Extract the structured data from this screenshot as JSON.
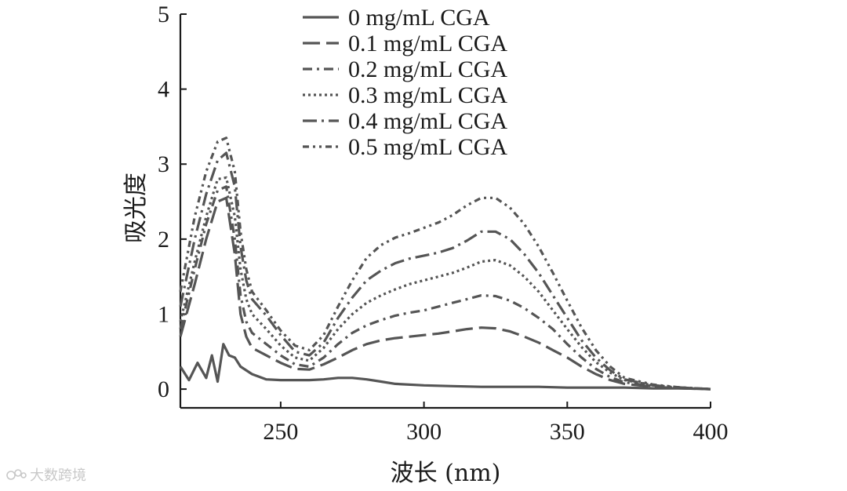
{
  "chart_data": {
    "type": "line",
    "title": "",
    "xlabel": "波长 (nm)",
    "ylabel": "吸光度",
    "xlim": [
      215,
      400
    ],
    "ylim": [
      -0.25,
      5
    ],
    "xticks": [
      250,
      300,
      350,
      400
    ],
    "yticks": [
      0,
      1,
      2,
      3,
      4,
      5
    ],
    "grid": false,
    "legend_position": "top-center",
    "series": [
      {
        "name": "0 mg/mL CGA",
        "color": "#555555",
        "dash": "solid",
        "x": [
          215,
          218,
          221,
          224,
          226,
          228,
          230,
          232,
          234,
          236,
          240,
          245,
          250,
          255,
          260,
          265,
          270,
          275,
          280,
          285,
          290,
          300,
          310,
          320,
          330,
          340,
          350,
          360,
          370,
          380,
          390,
          400
        ],
        "y": [
          0.3,
          0.12,
          0.35,
          0.15,
          0.45,
          0.1,
          0.6,
          0.45,
          0.42,
          0.3,
          0.2,
          0.13,
          0.12,
          0.12,
          0.12,
          0.13,
          0.15,
          0.15,
          0.13,
          0.1,
          0.07,
          0.05,
          0.04,
          0.03,
          0.03,
          0.03,
          0.02,
          0.02,
          0.02,
          0.01,
          0.01,
          0.0
        ]
      },
      {
        "name": "0.1 mg/mL CGA",
        "color": "#555555",
        "dash": "long-dash",
        "x": [
          215,
          220,
          224,
          228,
          231,
          234,
          236,
          238,
          240,
          245,
          250,
          255,
          260,
          265,
          270,
          275,
          280,
          285,
          290,
          295,
          300,
          305,
          310,
          315,
          320,
          325,
          330,
          335,
          340,
          345,
          350,
          355,
          360,
          365,
          370,
          380,
          390,
          400
        ],
        "y": [
          0.7,
          1.4,
          2.0,
          2.5,
          2.55,
          1.8,
          1.0,
          0.7,
          0.55,
          0.45,
          0.35,
          0.27,
          0.26,
          0.33,
          0.42,
          0.52,
          0.6,
          0.65,
          0.68,
          0.7,
          0.72,
          0.74,
          0.77,
          0.8,
          0.82,
          0.81,
          0.77,
          0.7,
          0.62,
          0.52,
          0.42,
          0.3,
          0.2,
          0.12,
          0.07,
          0.03,
          0.01,
          0.0
        ]
      },
      {
        "name": "0.2 mg/mL CGA",
        "color": "#555555",
        "dash": "dash-dot",
        "x": [
          215,
          220,
          224,
          228,
          231,
          234,
          236,
          238,
          240,
          245,
          250,
          255,
          260,
          265,
          270,
          275,
          280,
          285,
          290,
          295,
          300,
          305,
          310,
          315,
          320,
          325,
          330,
          335,
          340,
          345,
          350,
          355,
          360,
          365,
          370,
          380,
          390,
          400
        ],
        "y": [
          0.8,
          1.6,
          2.2,
          2.65,
          2.7,
          2.0,
          1.25,
          0.9,
          0.75,
          0.6,
          0.45,
          0.33,
          0.3,
          0.42,
          0.6,
          0.75,
          0.85,
          0.92,
          0.98,
          1.02,
          1.05,
          1.1,
          1.15,
          1.2,
          1.25,
          1.24,
          1.18,
          1.08,
          0.95,
          0.8,
          0.6,
          0.42,
          0.27,
          0.16,
          0.09,
          0.04,
          0.02,
          0.0
        ]
      },
      {
        "name": "0.3 mg/mL CGA",
        "color": "#555555",
        "dash": "dotted",
        "x": [
          215,
          220,
          224,
          228,
          231,
          234,
          236,
          238,
          240,
          245,
          250,
          255,
          260,
          265,
          270,
          275,
          280,
          285,
          290,
          295,
          300,
          305,
          310,
          315,
          320,
          325,
          330,
          335,
          340,
          345,
          350,
          355,
          360,
          365,
          370,
          380,
          390,
          400
        ],
        "y": [
          0.9,
          1.7,
          2.3,
          2.8,
          2.82,
          2.3,
          1.6,
          1.2,
          1.0,
          0.8,
          0.58,
          0.42,
          0.38,
          0.55,
          0.8,
          1.0,
          1.15,
          1.25,
          1.33,
          1.4,
          1.45,
          1.5,
          1.55,
          1.62,
          1.7,
          1.72,
          1.65,
          1.5,
          1.3,
          1.05,
          0.8,
          0.56,
          0.36,
          0.22,
          0.12,
          0.05,
          0.02,
          0.0
        ]
      },
      {
        "name": "0.4 mg/mL CGA",
        "color": "#555555",
        "dash": "long-dash-dot",
        "x": [
          215,
          220,
          224,
          228,
          231,
          234,
          236,
          238,
          240,
          245,
          250,
          255,
          260,
          265,
          270,
          275,
          280,
          285,
          290,
          295,
          300,
          305,
          310,
          315,
          320,
          325,
          330,
          335,
          340,
          345,
          350,
          355,
          360,
          365,
          370,
          380,
          390,
          400
        ],
        "y": [
          1.1,
          2.0,
          2.6,
          3.05,
          3.15,
          2.7,
          1.9,
          1.45,
          1.2,
          0.98,
          0.72,
          0.5,
          0.45,
          0.62,
          0.95,
          1.22,
          1.45,
          1.58,
          1.68,
          1.74,
          1.78,
          1.82,
          1.88,
          1.98,
          2.1,
          2.1,
          2.0,
          1.8,
          1.55,
          1.25,
          0.95,
          0.65,
          0.42,
          0.25,
          0.13,
          0.05,
          0.02,
          0.0
        ]
      },
      {
        "name": "0.5 mg/mL CGA",
        "color": "#555555",
        "dash": "dash-dot-dot",
        "x": [
          215,
          220,
          224,
          228,
          231,
          234,
          236,
          238,
          240,
          245,
          250,
          255,
          260,
          265,
          270,
          275,
          280,
          285,
          290,
          295,
          300,
          305,
          310,
          315,
          320,
          325,
          330,
          335,
          340,
          345,
          350,
          355,
          360,
          365,
          370,
          380,
          390,
          400
        ],
        "y": [
          1.3,
          2.3,
          2.9,
          3.3,
          3.35,
          2.9,
          2.1,
          1.6,
          1.3,
          1.05,
          0.78,
          0.58,
          0.52,
          0.72,
          1.1,
          1.45,
          1.75,
          1.92,
          2.02,
          2.08,
          2.15,
          2.22,
          2.32,
          2.45,
          2.55,
          2.55,
          2.42,
          2.2,
          1.9,
          1.55,
          1.18,
          0.82,
          0.52,
          0.3,
          0.15,
          0.06,
          0.02,
          0.0
        ]
      }
    ]
  },
  "watermark": {
    "text": "大数跨境"
  }
}
